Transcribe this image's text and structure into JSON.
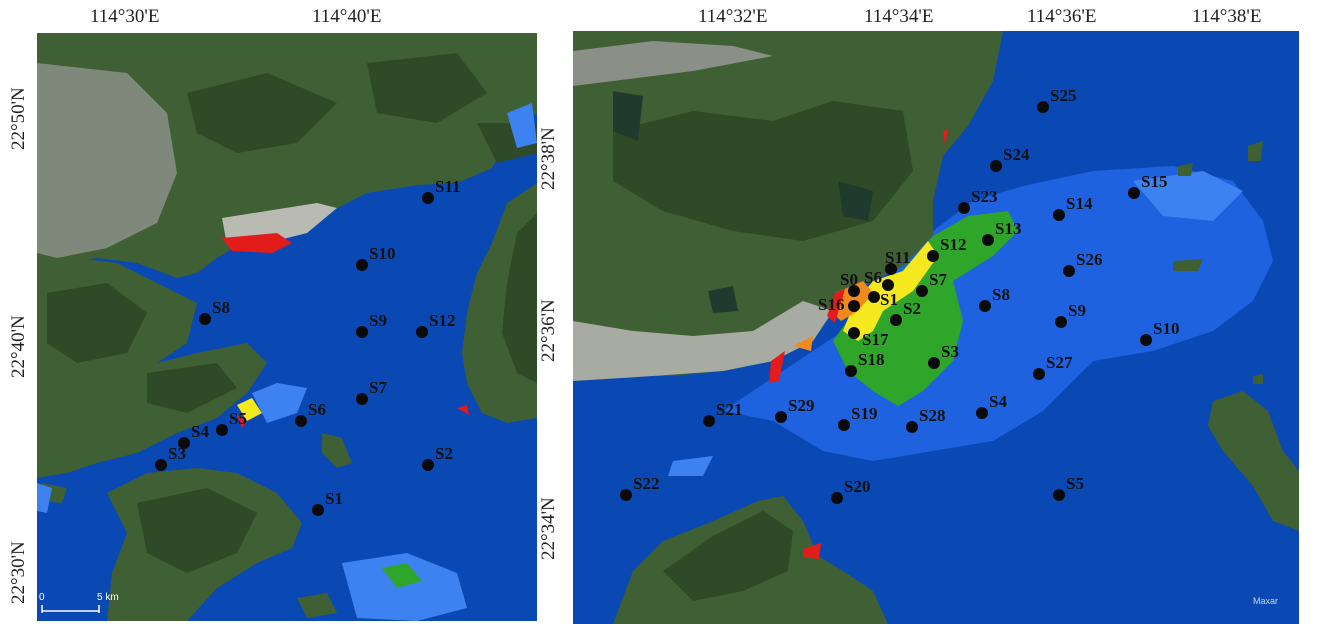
{
  "left_map": {
    "lon_ticks": [
      "114°30'E",
      "114°40'E"
    ],
    "lat_ticks": [
      "22°50'N",
      "22°40'N",
      "22°30'N"
    ],
    "scale_bar": {
      "start": "0",
      "end": "5 km"
    },
    "stations": [
      "S11",
      "S10",
      "S8",
      "S9",
      "S12",
      "S7",
      "S6",
      "S5",
      "S4",
      "S3",
      "S2",
      "S1"
    ]
  },
  "right_map": {
    "lon_ticks": [
      "114°32'E",
      "114°34'E",
      "114°36'E",
      "114°38'E"
    ],
    "lat_ticks": [
      "22°38'N",
      "22°36'N",
      "22°34'N"
    ],
    "credit": "Maxar",
    "stations": [
      "S25",
      "S24",
      "S15",
      "S23",
      "S14",
      "S13",
      "S12",
      "S11",
      "S26",
      "S0",
      "S6",
      "S7",
      "S1",
      "S8",
      "S16",
      "S9",
      "S2",
      "S10",
      "S17",
      "S3",
      "S18",
      "S27",
      "S4",
      "S29",
      "S21",
      "S19",
      "S28",
      "S22",
      "S20",
      "S5"
    ]
  },
  "colors": {
    "sea": "#0a48b4",
    "sea_dark": "#0b3e9e",
    "low": "#1e62e0",
    "low_light": "#3d82f0",
    "moderate": "#2fa52a",
    "high": "#f5e81e",
    "very_high": "#f08a1a",
    "extreme": "#e41b1b",
    "land": "#3f5f34",
    "land_dark": "#2e4a27",
    "urban": "#8a8f88"
  }
}
